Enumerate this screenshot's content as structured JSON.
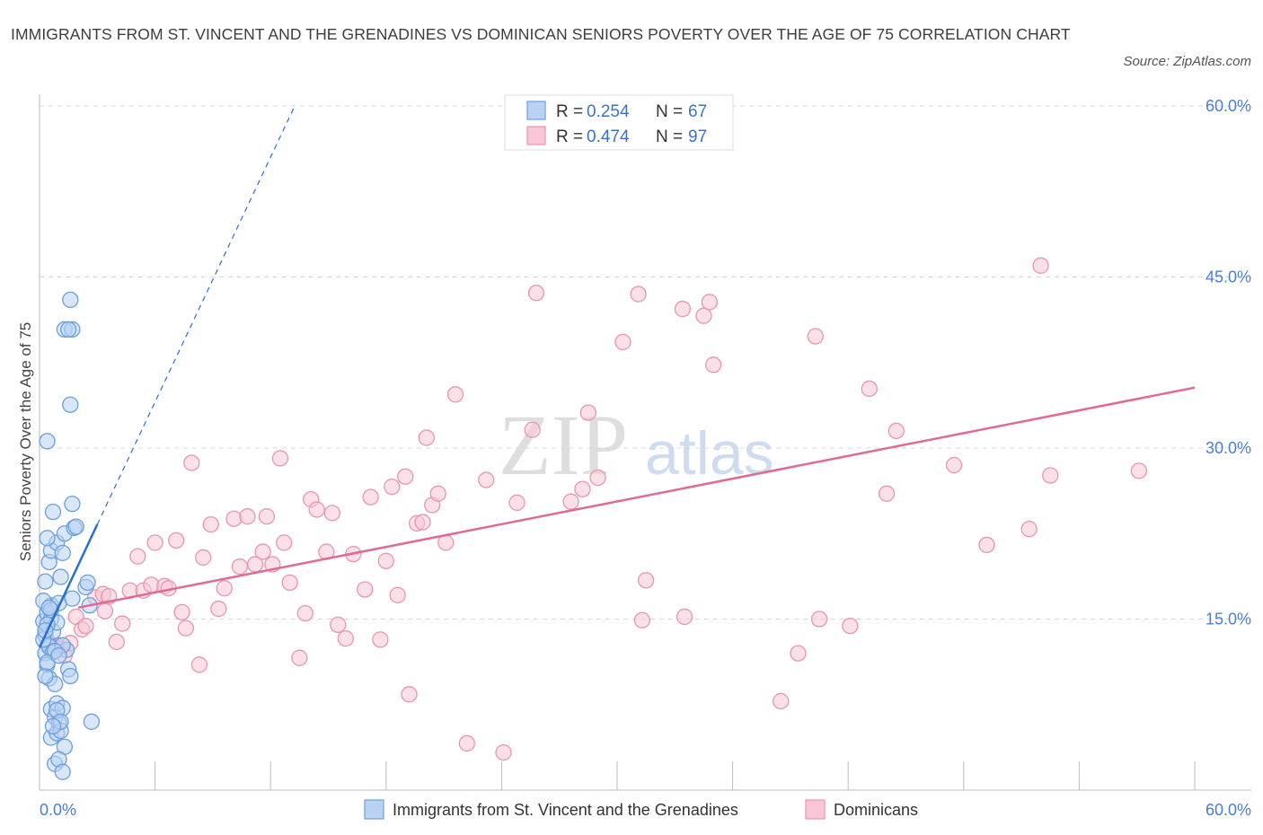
{
  "title": "IMMIGRANTS FROM ST. VINCENT AND THE GRENADINES VS DOMINICAN SENIORS POVERTY OVER THE AGE OF 75 CORRELATION CHART",
  "source": "Source: ZipAtlas.com",
  "watermark": {
    "zip": "ZIP",
    "atlas": "atlas"
  },
  "legend": {
    "r_label": "R = ",
    "n_label": "N = ",
    "series1": {
      "r": "0.254",
      "n": "67"
    },
    "series2": {
      "r": "0.474",
      "n": "97"
    }
  },
  "colors": {
    "series1_fill": "#b9d2f2",
    "series1_stroke": "#6b9fdc",
    "series1_line": "#2a6fd0",
    "series2_fill": "#f8c6d6",
    "series2_stroke": "#e995b0",
    "series2_line": "#e06a95",
    "tick": "#4a7fd0",
    "grid": "#d8d8d8"
  },
  "chart_data": {
    "type": "scatter",
    "title": "IMMIGRANTS FROM ST. VINCENT AND THE GRENADINES VS DOMINICAN SENIORS POVERTY OVER THE AGE OF 75 CORRELATION CHART",
    "xlabel": "",
    "ylabel": "Seniors Poverty Over the Age of 75",
    "xlim": [
      0,
      60
    ],
    "ylim": [
      0,
      60
    ],
    "x_tick_labels": [
      "0.0%",
      "60.0%"
    ],
    "y_tick_labels": [
      "15.0%",
      "30.0%",
      "45.0%",
      "60.0%"
    ],
    "y_ticks": [
      15,
      30,
      45,
      60
    ],
    "grid": true,
    "legend_position": "top-center",
    "series": [
      {
        "name": "Immigrants from St. Vincent and the Grenadines",
        "r": 0.254,
        "n": 67,
        "trend": {
          "x": [
            0.0,
            3.0
          ],
          "y": [
            12.5,
            23.3
          ]
        },
        "trend_extension": {
          "x": [
            3.0,
            13.2
          ],
          "y": [
            23.3,
            59.8
          ]
        },
        "points": [
          [
            0.3,
            13.6
          ],
          [
            0.5,
            12.8
          ],
          [
            0.2,
            14.8
          ],
          [
            0.4,
            15.5
          ],
          [
            0.6,
            16.2
          ],
          [
            0.3,
            12.0
          ],
          [
            0.7,
            13.9
          ],
          [
            0.4,
            11.0
          ],
          [
            0.5,
            9.8
          ],
          [
            0.8,
            9.3
          ],
          [
            0.3,
            18.3
          ],
          [
            0.5,
            20.0
          ],
          [
            0.6,
            21.0
          ],
          [
            0.9,
            21.7
          ],
          [
            0.4,
            22.1
          ],
          [
            0.7,
            24.4
          ],
          [
            0.2,
            16.6
          ],
          [
            0.6,
            15.0
          ],
          [
            0.9,
            14.7
          ],
          [
            1.0,
            16.4
          ],
          [
            1.1,
            18.7
          ],
          [
            1.2,
            20.8
          ],
          [
            1.3,
            22.5
          ],
          [
            1.4,
            12.3
          ],
          [
            1.5,
            10.6
          ],
          [
            1.6,
            10.0
          ],
          [
            1.7,
            16.8
          ],
          [
            1.8,
            23.0
          ],
          [
            1.9,
            23.1
          ],
          [
            1.7,
            25.1
          ],
          [
            0.4,
            30.6
          ],
          [
            1.3,
            40.4
          ],
          [
            1.6,
            33.8
          ],
          [
            1.7,
            40.4
          ],
          [
            1.6,
            43.0
          ],
          [
            1.5,
            40.4
          ],
          [
            0.6,
            7.1
          ],
          [
            0.8,
            6.4
          ],
          [
            0.9,
            7.6
          ],
          [
            1.0,
            5.9
          ],
          [
            1.2,
            7.2
          ],
          [
            0.6,
            4.6
          ],
          [
            0.9,
            5.0
          ],
          [
            1.1,
            5.2
          ],
          [
            1.3,
            3.8
          ],
          [
            0.8,
            2.3
          ],
          [
            1.0,
            2.7
          ],
          [
            1.2,
            1.6
          ],
          [
            2.4,
            17.8
          ],
          [
            2.5,
            18.2
          ],
          [
            2.6,
            16.2
          ],
          [
            2.7,
            6.0
          ],
          [
            0.3,
            10.0
          ],
          [
            0.5,
            12.6
          ],
          [
            0.7,
            12.1
          ],
          [
            0.2,
            13.2
          ],
          [
            0.4,
            14.5
          ],
          [
            1.2,
            12.7
          ],
          [
            0.8,
            12.2
          ],
          [
            0.6,
            15.8
          ],
          [
            0.4,
            11.2
          ],
          [
            0.3,
            14.0
          ],
          [
            0.5,
            16.0
          ],
          [
            0.9,
            7.0
          ],
          [
            1.1,
            6.0
          ],
          [
            0.7,
            5.6
          ],
          [
            1.0,
            11.8
          ]
        ]
      },
      {
        "name": "Dominicans",
        "r": 0.474,
        "n": 97,
        "trend": {
          "x": [
            2.0,
            60.0
          ],
          "y": [
            16.0,
            35.3
          ]
        },
        "points": [
          [
            0.5,
            12.5
          ],
          [
            0.9,
            12.7
          ],
          [
            1.1,
            12.4
          ],
          [
            1.3,
            11.8
          ],
          [
            1.6,
            12.9
          ],
          [
            1.9,
            15.2
          ],
          [
            2.2,
            14.1
          ],
          [
            2.4,
            14.4
          ],
          [
            2.9,
            16.9
          ],
          [
            3.3,
            17.2
          ],
          [
            3.4,
            15.7
          ],
          [
            3.6,
            17.0
          ],
          [
            4.0,
            13.0
          ],
          [
            4.3,
            14.6
          ],
          [
            4.7,
            17.5
          ],
          [
            5.1,
            20.5
          ],
          [
            5.4,
            17.5
          ],
          [
            5.8,
            18.0
          ],
          [
            6.0,
            21.7
          ],
          [
            6.5,
            17.9
          ],
          [
            6.7,
            17.7
          ],
          [
            7.1,
            21.9
          ],
          [
            7.4,
            15.6
          ],
          [
            7.6,
            14.2
          ],
          [
            7.9,
            28.7
          ],
          [
            8.3,
            11.0
          ],
          [
            8.5,
            20.4
          ],
          [
            8.9,
            23.3
          ],
          [
            9.3,
            15.9
          ],
          [
            9.6,
            17.7
          ],
          [
            10.1,
            23.8
          ],
          [
            10.4,
            19.6
          ],
          [
            10.8,
            24.0
          ],
          [
            11.2,
            19.8
          ],
          [
            11.6,
            20.9
          ],
          [
            11.8,
            24.0
          ],
          [
            12.1,
            19.8
          ],
          [
            12.5,
            29.1
          ],
          [
            12.7,
            21.7
          ],
          [
            13.0,
            18.2
          ],
          [
            13.5,
            11.6
          ],
          [
            13.8,
            15.5
          ],
          [
            14.1,
            25.5
          ],
          [
            14.4,
            24.6
          ],
          [
            14.9,
            20.9
          ],
          [
            15.2,
            24.3
          ],
          [
            15.5,
            14.5
          ],
          [
            15.9,
            13.3
          ],
          [
            16.3,
            20.7
          ],
          [
            16.9,
            17.6
          ],
          [
            17.2,
            25.7
          ],
          [
            17.7,
            13.2
          ],
          [
            18.0,
            20.1
          ],
          [
            18.3,
            26.6
          ],
          [
            18.6,
            17.1
          ],
          [
            19.0,
            27.5
          ],
          [
            19.2,
            8.4
          ],
          [
            19.6,
            23.4
          ],
          [
            19.9,
            23.5
          ],
          [
            20.1,
            30.9
          ],
          [
            20.4,
            25.0
          ],
          [
            20.7,
            26.0
          ],
          [
            21.1,
            21.7
          ],
          [
            21.6,
            34.7
          ],
          [
            22.2,
            4.1
          ],
          [
            23.2,
            27.2
          ],
          [
            24.1,
            3.3
          ],
          [
            24.8,
            25.2
          ],
          [
            25.6,
            31.6
          ],
          [
            25.8,
            43.6
          ],
          [
            27.6,
            25.3
          ],
          [
            28.2,
            26.4
          ],
          [
            28.5,
            33.1
          ],
          [
            29.0,
            27.4
          ],
          [
            30.3,
            39.3
          ],
          [
            31.3,
            14.9
          ],
          [
            31.5,
            18.4
          ],
          [
            31.1,
            43.5
          ],
          [
            33.5,
            15.2
          ],
          [
            33.4,
            42.2
          ],
          [
            34.5,
            41.6
          ],
          [
            35.0,
            37.3
          ],
          [
            34.8,
            42.8
          ],
          [
            38.5,
            7.8
          ],
          [
            39.4,
            12.0
          ],
          [
            40.5,
            15.0
          ],
          [
            40.3,
            39.8
          ],
          [
            42.1,
            14.4
          ],
          [
            43.1,
            35.2
          ],
          [
            44.0,
            26.0
          ],
          [
            44.5,
            31.5
          ],
          [
            47.5,
            28.5
          ],
          [
            49.2,
            21.5
          ],
          [
            51.4,
            22.9
          ],
          [
            52.0,
            46.0
          ],
          [
            52.5,
            27.6
          ],
          [
            57.1,
            28.0
          ]
        ]
      }
    ]
  },
  "bottom_legend": {
    "series1": "Immigrants from St. Vincent and the Grenadines",
    "series2": "Dominicans"
  }
}
